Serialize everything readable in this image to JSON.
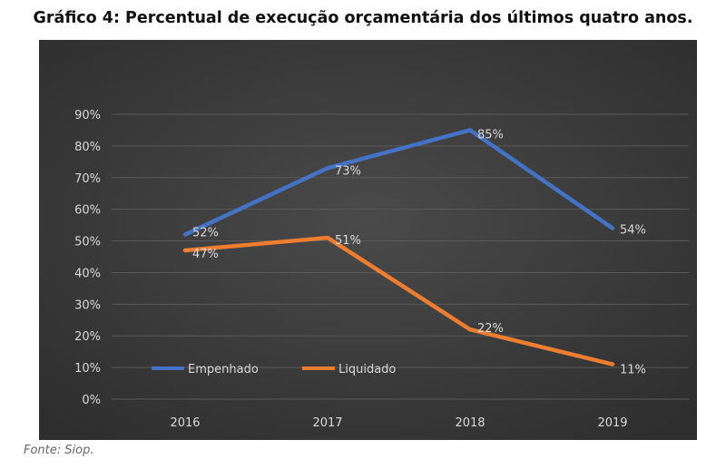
{
  "title": "Gráfico 4: Percentual de execução orçamentária dos últimos quatro anos.",
  "source": "Fonte: Siop.",
  "colors": {
    "background": "#3a3a3a",
    "grid": "#5a5a5a",
    "text": "#d9d9d9",
    "Empenhado": "#4472c4",
    "Liquidado": "#ed7d31"
  },
  "chart_data": {
    "type": "line",
    "categories": [
      "2016",
      "2017",
      "2018",
      "2019"
    ],
    "series": [
      {
        "name": "Empenhado",
        "values": [
          52,
          73,
          85,
          54
        ],
        "labels": [
          "52%",
          "73%",
          "85%",
          "54%"
        ]
      },
      {
        "name": "Liquidado",
        "values": [
          47,
          51,
          22,
          11
        ],
        "labels": [
          "47%",
          "51%",
          "22%",
          "11%"
        ]
      }
    ],
    "yticks": [
      "0%",
      "10%",
      "20%",
      "30%",
      "40%",
      "50%",
      "60%",
      "70%",
      "80%",
      "90%"
    ],
    "ylim": [
      0,
      90
    ],
    "grid": true,
    "legend": "bottom-left (inside plot)"
  }
}
